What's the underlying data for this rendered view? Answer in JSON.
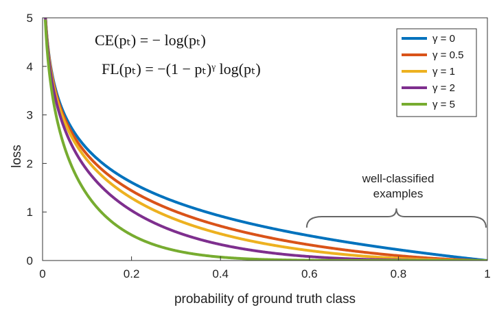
{
  "chart_data": {
    "type": "line",
    "title": "",
    "xlabel": "probability of ground truth class",
    "ylabel": "loss",
    "xlim": [
      0,
      1
    ],
    "ylim": [
      0,
      5
    ],
    "xticks": [
      "0",
      "0.2",
      "0.4",
      "0.6",
      "0.8",
      "1"
    ],
    "xtick_values": [
      0,
      0.2,
      0.4,
      0.6,
      0.8,
      1
    ],
    "yticks": [
      "0",
      "1",
      "2",
      "3",
      "4",
      "5"
    ],
    "ytick_values": [
      0,
      1,
      2,
      3,
      4,
      5
    ],
    "grid": false,
    "legend_position": "top-right",
    "formulas": [
      "CE(pₜ) = − log(pₜ)",
      "FL(pₜ) = −(1 − pₜ)ᵞ log(pₜ)"
    ],
    "annotation": {
      "lines": [
        "well-classified",
        "examples"
      ],
      "x_range": [
        0.6,
        1
      ]
    },
    "series": [
      {
        "name": "γ = 0",
        "gamma": 0,
        "color": "#0072BD"
      },
      {
        "name": "γ = 0.5",
        "gamma": 0.5,
        "color": "#D95319"
      },
      {
        "name": "γ = 1",
        "gamma": 1,
        "color": "#EDB120"
      },
      {
        "name": "γ = 2",
        "gamma": 2,
        "color": "#7E2F8E"
      },
      {
        "name": "γ = 5",
        "gamma": 5,
        "color": "#77AC30"
      }
    ]
  }
}
